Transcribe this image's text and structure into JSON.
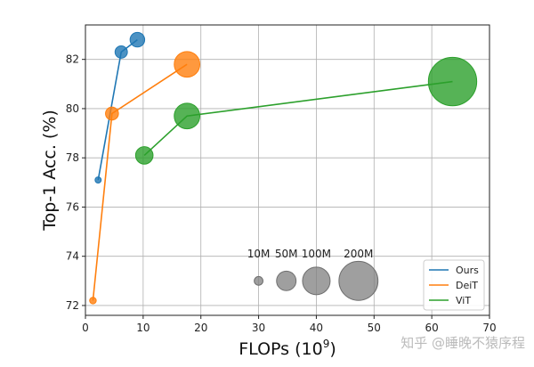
{
  "chart_data": {
    "type": "scatter",
    "title": "",
    "xlabel": "FLOPs (10^9)",
    "xlabel_base": "FLOPs (10",
    "xlabel_exp": "9",
    "xlabel_close": ")",
    "ylabel": "Top-1 Acc. (%)",
    "xlim": [
      0,
      70
    ],
    "ylim": [
      71.6,
      83.4
    ],
    "xticks": [
      0,
      10,
      20,
      30,
      40,
      50,
      60,
      70
    ],
    "yticks": [
      72,
      74,
      76,
      78,
      80,
      82
    ],
    "grid": true,
    "legend_position": "bottom-right",
    "series": [
      {
        "name": "Ours",
        "color": "#1f77b4",
        "points": [
          {
            "x": 2.2,
            "y": 77.1,
            "params": 5
          },
          {
            "x": 6.2,
            "y": 82.3,
            "params": 20
          },
          {
            "x": 9.0,
            "y": 82.8,
            "params": 28
          }
        ]
      },
      {
        "name": "DeiT",
        "color": "#ff7f0e",
        "points": [
          {
            "x": 1.3,
            "y": 72.2,
            "params": 5.7
          },
          {
            "x": 4.6,
            "y": 79.8,
            "params": 22
          },
          {
            "x": 17.6,
            "y": 81.8,
            "params": 86
          }
        ]
      },
      {
        "name": "ViT",
        "color": "#2ca02c",
        "points": [
          {
            "x": 10.2,
            "y": 78.1,
            "params": 40
          },
          {
            "x": 17.6,
            "y": 79.7,
            "params": 86
          },
          {
            "x": 63.6,
            "y": 81.1,
            "params": 307
          }
        ]
      }
    ],
    "size_legend": {
      "color": "#7f7f7f",
      "entries": [
        {
          "label": "10M",
          "params": 10,
          "x": 30.0,
          "y": 73.0
        },
        {
          "label": "50M",
          "params": 50,
          "x": 34.8,
          "y": 73.0
        },
        {
          "label": "100M",
          "params": 100,
          "x": 40.0,
          "y": 73.0
        },
        {
          "label": "200M",
          "params": 200,
          "x": 47.3,
          "y": 73.0
        }
      ]
    }
  },
  "watermark": "知乎 @睡晚不猿序程"
}
